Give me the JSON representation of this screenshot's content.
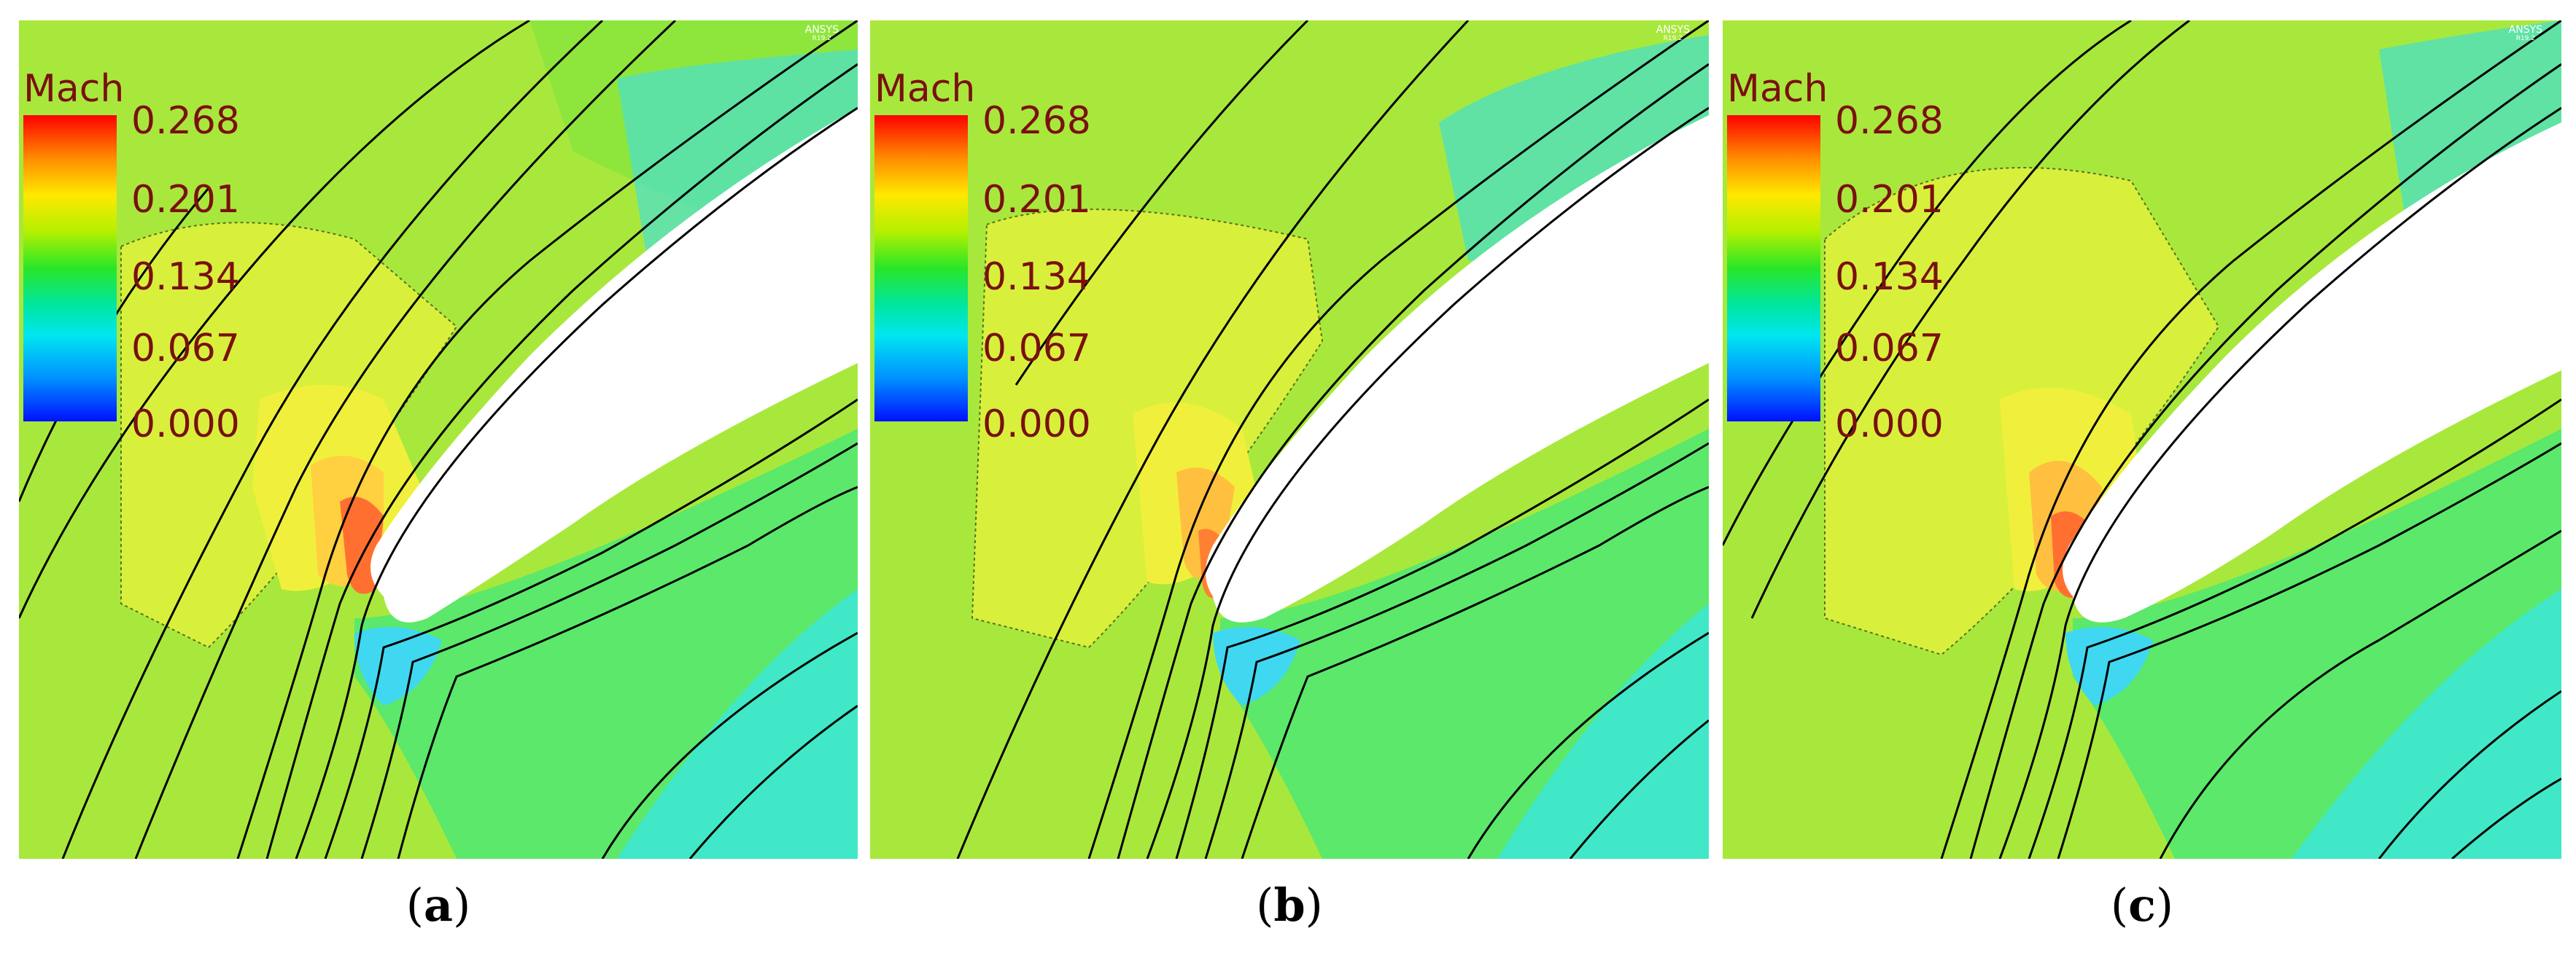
{
  "legend": {
    "title": "Mach",
    "ticks": [
      "0.268",
      "0.201",
      "0.134",
      "0.067",
      "0.000"
    ]
  },
  "brand": {
    "name": "ANSYS",
    "version": "R19.2"
  },
  "panels": [
    {
      "id": "a",
      "caption_open": "(",
      "caption_letter": "a",
      "caption_close": ")"
    },
    {
      "id": "b",
      "caption_open": "(",
      "caption_letter": "b",
      "caption_close": ")"
    },
    {
      "id": "c",
      "caption_open": "(",
      "caption_letter": "c",
      "caption_close": ")"
    }
  ],
  "colors": {
    "freestream": "#a8e83c",
    "high": "#e8f03c",
    "peak": "#ff8030",
    "low": "#48f0b0",
    "wake": "#30e0d0",
    "cyan": "#40e8e8",
    "blade": "#ffffff",
    "streamline": "#000000",
    "label": "#7a1010"
  }
}
